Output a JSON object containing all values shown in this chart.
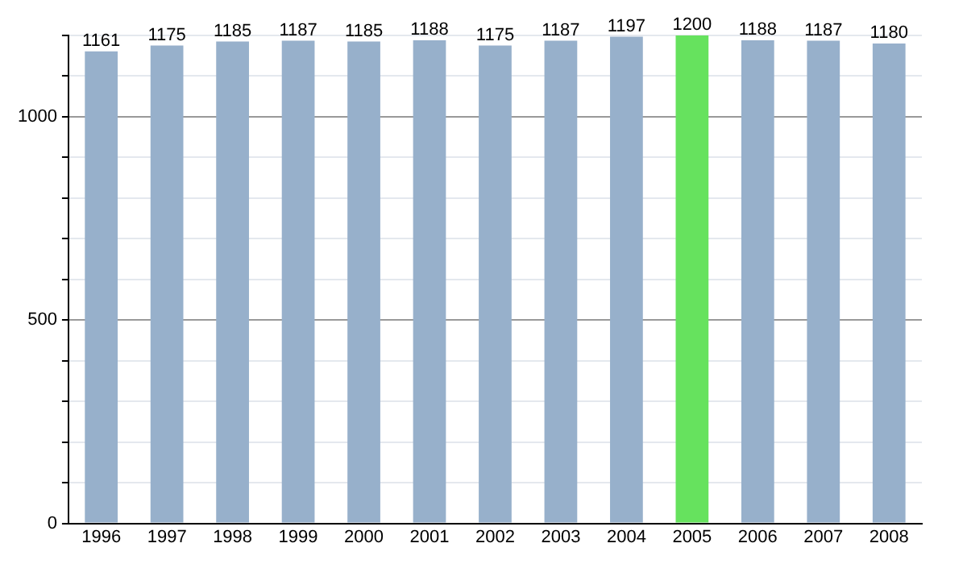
{
  "chart_data": {
    "type": "bar",
    "categories": [
      "1996",
      "1997",
      "1998",
      "1999",
      "2000",
      "2001",
      "2002",
      "2003",
      "2004",
      "2005",
      "2006",
      "2007",
      "2008"
    ],
    "values": [
      1161,
      1175,
      1185,
      1187,
      1185,
      1188,
      1175,
      1187,
      1197,
      1200,
      1188,
      1187,
      1180
    ],
    "colors": [
      "#97b0cb",
      "#97b0cb",
      "#97b0cb",
      "#97b0cb",
      "#97b0cb",
      "#97b0cb",
      "#97b0cb",
      "#97b0cb",
      "#97b0cb",
      "#66e25e",
      "#97b0cb",
      "#97b0cb",
      "#97b0cb"
    ],
    "ylim": [
      0,
      1200
    ],
    "yticks": [
      0,
      {
        "value": 100,
        "label": null
      },
      {
        "value": 200,
        "label": null
      },
      {
        "value": 300,
        "label": null
      },
      {
        "value": 400,
        "label": null
      },
      500,
      {
        "value": 600,
        "label": null
      },
      {
        "value": 700,
        "label": null
      },
      {
        "value": 800,
        "label": null
      },
      {
        "value": 900,
        "label": null
      },
      1000,
      {
        "value": 1100,
        "label": null
      },
      {
        "value": 1200,
        "label": null
      }
    ],
    "grid": "y",
    "data_labels": true,
    "legend": false
  }
}
